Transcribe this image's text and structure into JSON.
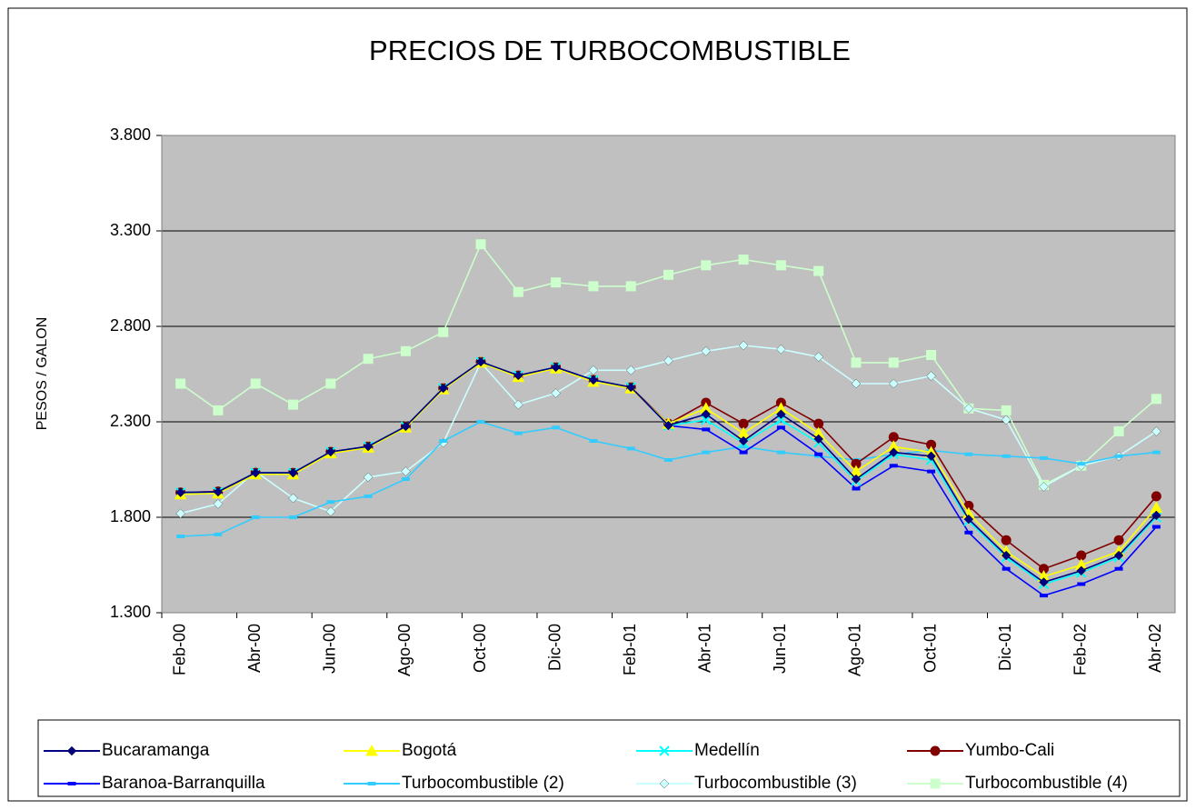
{
  "chart_data": {
    "type": "line",
    "title": "PRECIOS DE TURBOCOMBUSTIBLE",
    "y_label": "PESOS / GALON",
    "categories": [
      "Feb-00",
      null,
      "Abr-00",
      null,
      "Jun-00",
      null,
      "Ago-00",
      null,
      "Oct-00",
      null,
      "Dic-00",
      null,
      "Feb-01",
      null,
      "Abr-01",
      null,
      "Jun-01",
      null,
      "Ago-01",
      null,
      "Oct-01",
      null,
      "Dic-01",
      null,
      "Feb-02",
      null,
      "Abr-02"
    ],
    "ylim": [
      1300,
      3800
    ],
    "yticks": [
      {
        "value": 1300,
        "label": "1.300"
      },
      {
        "value": 1800,
        "label": "1.800"
      },
      {
        "value": 2300,
        "label": "2.300"
      },
      {
        "value": 2800,
        "label": "2.800"
      },
      {
        "value": 3300,
        "label": "3.300"
      },
      {
        "value": 3800,
        "label": "3.800"
      }
    ],
    "grid": true,
    "legend": "bottom",
    "series": [
      {
        "name": "Bucaramanga",
        "color": "#000080",
        "marker": "diamond",
        "values": [
          1930,
          1933,
          2033,
          2033,
          2143,
          2171,
          2276,
          2476,
          2614,
          2543,
          2586,
          2519,
          2481,
          2281,
          2340,
          2200,
          2340,
          2210,
          2000,
          2140,
          2120,
          1790,
          1600,
          1460,
          1520,
          1600,
          1810
        ]
      },
      {
        "name": "Bogotá",
        "color": "#ffff00",
        "marker": "triangle",
        "values": [
          1920,
          1925,
          2025,
          2025,
          2135,
          2165,
          2270,
          2470,
          2610,
          2535,
          2580,
          2510,
          2475,
          2290,
          2370,
          2240,
          2370,
          2240,
          2040,
          2170,
          2140,
          1820,
          1620,
          1490,
          1550,
          1620,
          1850
        ]
      },
      {
        "name": "Medellín",
        "color": "#00ffff",
        "marker": "x",
        "values": [
          1930,
          1933,
          2033,
          2033,
          2143,
          2171,
          2276,
          2476,
          2614,
          2543,
          2586,
          2519,
          2481,
          2280,
          2310,
          2190,
          2310,
          2190,
          1990,
          2130,
          2100,
          1780,
          1590,
          1450,
          1510,
          1590,
          1800
        ]
      },
      {
        "name": "Yumbo-Cali",
        "color": "#800000",
        "marker": "circle",
        "values": [
          1930,
          1935,
          2033,
          2033,
          2143,
          2171,
          2276,
          2476,
          2614,
          2543,
          2586,
          2519,
          2481,
          2290,
          2400,
          2290,
          2400,
          2290,
          2080,
          2220,
          2180,
          1860,
          1680,
          1530,
          1600,
          1680,
          1910
        ]
      },
      {
        "name": "Baranoa-Barranquilla",
        "color": "#0000ff",
        "marker": "dash",
        "values": [
          1930,
          1933,
          2033,
          2033,
          2143,
          2171,
          2276,
          2476,
          2614,
          2543,
          2586,
          2519,
          2481,
          2280,
          2260,
          2140,
          2270,
          2130,
          1950,
          2070,
          2040,
          1720,
          1530,
          1390,
          1450,
          1530,
          1750
        ]
      },
      {
        "name": "Turbocombustible (2)",
        "color": "#33ccff",
        "marker": "dash",
        "values": [
          1700,
          1710,
          1800,
          1800,
          1880,
          1910,
          2000,
          2200,
          2300,
          2240,
          2270,
          2200,
          2160,
          2100,
          2140,
          2170,
          2140,
          2120,
          2100,
          2130,
          2150,
          2130,
          2120,
          2110,
          2080,
          2120,
          2140
        ]
      },
      {
        "name": "Turbocombustible (3)",
        "color": "#ccffff",
        "marker": "diamond",
        "values": [
          1820,
          1870,
          2040,
          1900,
          1830,
          2010,
          2040,
          2190,
          2610,
          2390,
          2450,
          2570,
          2570,
          2620,
          2670,
          2700,
          2680,
          2640,
          2500,
          2500,
          2540,
          2370,
          2310,
          1960,
          2070,
          2120,
          2250
        ]
      },
      {
        "name": "Turbocombustible (4)",
        "color": "#ccffcc",
        "marker": "square",
        "values": [
          2500,
          2360,
          2500,
          2390,
          2500,
          2630,
          2670,
          2770,
          3230,
          2980,
          3030,
          3010,
          3010,
          3070,
          3120,
          3150,
          3120,
          3090,
          2610,
          2610,
          2650,
          2370,
          2360,
          1970,
          2070,
          2250,
          2420
        ]
      }
    ]
  }
}
